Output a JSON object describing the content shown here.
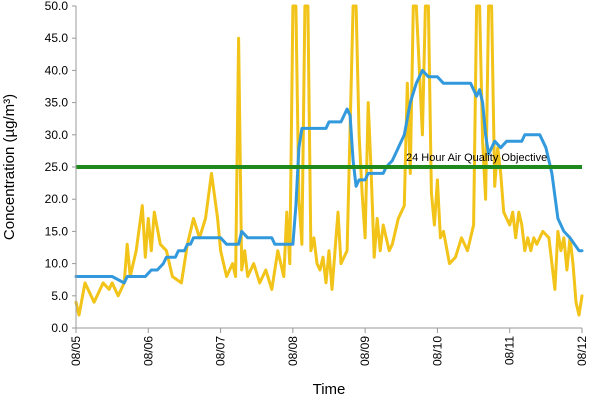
{
  "chart_data": {
    "type": "line",
    "title": "",
    "xlabel": "Time",
    "ylabel": "Concentration (µg/m³)",
    "x_start": "08/05",
    "x_end": "08/12",
    "x_ticks": [
      "08/05",
      "08/06",
      "08/07",
      "08/08",
      "08/09",
      "08/10",
      "08/11",
      "08/12"
    ],
    "ylim": [
      0,
      50
    ],
    "y_ticks": [
      "0.0",
      "5.0",
      "10.0",
      "15.0",
      "20.0",
      "25.0",
      "30.0",
      "35.0",
      "40.0",
      "45.0",
      "50.0"
    ],
    "grid": false,
    "legend": "none",
    "colors": {
      "hourly": "#f2c318",
      "rolling": "#3399dd",
      "objective": "#1e8a1e"
    },
    "objective": {
      "label": "24 Hour Air Quality Objective",
      "value": 25
    },
    "series": [
      {
        "points": [
          [
            "08/05 00:00",
            4
          ],
          [
            "08/05 01:00",
            2
          ],
          [
            "08/05 03:00",
            7
          ],
          [
            "08/05 06:00",
            4
          ],
          [
            "08/05 09:00",
            7
          ],
          [
            "08/05 11:00",
            6
          ],
          [
            "08/05 12:00",
            7
          ],
          [
            "08/05 14:00",
            5
          ],
          [
            "08/05 16:00",
            7
          ],
          [
            "08/05 17:00",
            13
          ],
          [
            "08/05 18:00",
            8
          ],
          [
            "08/05 20:00",
            12
          ],
          [
            "08/05 22:00",
            19
          ],
          [
            "08/05 23:00",
            11
          ],
          [
            "08/06 00:00",
            17
          ],
          [
            "08/06 01:00",
            12
          ],
          [
            "08/06 02:00",
            18
          ],
          [
            "08/06 04:00",
            13
          ],
          [
            "08/06 06:00",
            12
          ],
          [
            "08/06 08:00",
            8
          ],
          [
            "08/06 11:00",
            7
          ],
          [
            "08/06 13:00",
            13
          ],
          [
            "08/06 15:00",
            17
          ],
          [
            "08/06 17:00",
            14
          ],
          [
            "08/06 19:00",
            17
          ],
          [
            "08/06 21:00",
            24
          ],
          [
            "08/06 23:00",
            17
          ],
          [
            "08/07 00:00",
            12
          ],
          [
            "08/07 02:00",
            8
          ],
          [
            "08/07 04:00",
            10
          ],
          [
            "08/07 05:00",
            8
          ],
          [
            "08/07 06:00",
            45
          ],
          [
            "08/07 07:00",
            9
          ],
          [
            "08/07 08:00",
            12
          ],
          [
            "08/07 09:00",
            8
          ],
          [
            "08/07 11:00",
            10
          ],
          [
            "08/07 13:00",
            7
          ],
          [
            "08/07 15:00",
            9
          ],
          [
            "08/07 17:00",
            6
          ],
          [
            "08/07 19:00",
            12
          ],
          [
            "08/07 21:00",
            8
          ],
          [
            "08/07 22:00",
            18
          ],
          [
            "08/07 23:00",
            10
          ],
          [
            "08/08 00:00",
            50
          ],
          [
            "08/08 01:00",
            50
          ],
          [
            "08/08 02:00",
            20
          ],
          [
            "08/08 03:00",
            13
          ],
          [
            "08/08 04:00",
            50
          ],
          [
            "08/08 05:00",
            50
          ],
          [
            "08/08 06:00",
            12
          ],
          [
            "08/08 07:00",
            14
          ],
          [
            "08/08 08:00",
            10
          ],
          [
            "08/08 09:00",
            9
          ],
          [
            "08/08 10:00",
            11
          ],
          [
            "08/08 11:00",
            7
          ],
          [
            "08/08 12:00",
            12
          ],
          [
            "08/08 13:00",
            6
          ],
          [
            "08/08 15:00",
            18
          ],
          [
            "08/08 16:00",
            10
          ],
          [
            "08/08 18:00",
            12
          ],
          [
            "08/08 20:00",
            50
          ],
          [
            "08/08 21:00",
            50
          ],
          [
            "08/08 22:00",
            30
          ],
          [
            "08/08 23:00",
            21
          ],
          [
            "08/09 00:00",
            14
          ],
          [
            "08/09 01:00",
            35
          ],
          [
            "08/09 02:00",
            24
          ],
          [
            "08/09 03:00",
            11
          ],
          [
            "08/09 04:00",
            17
          ],
          [
            "08/09 05:00",
            12
          ],
          [
            "08/09 06:00",
            16
          ],
          [
            "08/09 07:00",
            14
          ],
          [
            "08/09 08:00",
            12
          ],
          [
            "08/09 09:00",
            13
          ],
          [
            "08/09 11:00",
            17
          ],
          [
            "08/09 13:00",
            19
          ],
          [
            "08/09 14:00",
            38
          ],
          [
            "08/09 15:00",
            24
          ],
          [
            "08/09 16:00",
            50
          ],
          [
            "08/09 17:00",
            50
          ],
          [
            "08/09 18:00",
            40
          ],
          [
            "08/09 19:00",
            30
          ],
          [
            "08/09 20:00",
            50
          ],
          [
            "08/09 21:00",
            50
          ],
          [
            "08/09 22:00",
            21
          ],
          [
            "08/09 23:00",
            16
          ],
          [
            "08/10 00:00",
            23
          ],
          [
            "08/10 01:00",
            14
          ],
          [
            "08/10 02:00",
            15
          ],
          [
            "08/10 04:00",
            10
          ],
          [
            "08/10 06:00",
            11
          ],
          [
            "08/10 08:00",
            14
          ],
          [
            "08/10 10:00",
            12
          ],
          [
            "08/10 12:00",
            16
          ],
          [
            "08/10 13:00",
            50
          ],
          [
            "08/10 14:00",
            50
          ],
          [
            "08/10 15:00",
            29
          ],
          [
            "08/10 16:00",
            20
          ],
          [
            "08/10 17:00",
            50
          ],
          [
            "08/10 18:00",
            50
          ],
          [
            "08/10 19:00",
            22
          ],
          [
            "08/10 20:00",
            28
          ],
          [
            "08/10 21:00",
            24
          ],
          [
            "08/10 22:00",
            18
          ],
          [
            "08/11 00:00",
            16
          ],
          [
            "08/11 01:00",
            18
          ],
          [
            "08/11 02:00",
            14
          ],
          [
            "08/11 03:00",
            18
          ],
          [
            "08/11 04:00",
            16
          ],
          [
            "08/11 05:00",
            12
          ],
          [
            "08/11 06:00",
            14
          ],
          [
            "08/11 07:00",
            12
          ],
          [
            "08/11 08:00",
            14
          ],
          [
            "08/11 09:00",
            13
          ],
          [
            "08/11 11:00",
            15
          ],
          [
            "08/11 13:00",
            14
          ],
          [
            "08/11 15:00",
            6
          ],
          [
            "08/11 16:00",
            15
          ],
          [
            "08/11 17:00",
            12
          ],
          [
            "08/11 18:00",
            14
          ],
          [
            "08/11 19:00",
            9
          ],
          [
            "08/11 20:00",
            14
          ],
          [
            "08/11 21:00",
            10
          ],
          [
            "08/11 22:00",
            4
          ],
          [
            "08/11 23:00",
            2
          ],
          [
            "08/12 00:00",
            5
          ]
        ]
      },
      {
        "points": [
          [
            "08/05 00:00",
            8
          ],
          [
            "08/05 12:00",
            8
          ],
          [
            "08/05 16:00",
            7
          ],
          [
            "08/05 17:00",
            8
          ],
          [
            "08/05 23:00",
            8
          ],
          [
            "08/06 01:00",
            9
          ],
          [
            "08/06 03:00",
            9
          ],
          [
            "08/06 05:00",
            10
          ],
          [
            "08/06 06:00",
            11
          ],
          [
            "08/06 09:00",
            11
          ],
          [
            "08/06 10:00",
            12
          ],
          [
            "08/06 12:00",
            12
          ],
          [
            "08/06 13:00",
            13
          ],
          [
            "08/06 14:00",
            13
          ],
          [
            "08/06 15:00",
            14
          ],
          [
            "08/06 23:00",
            14
          ],
          [
            "08/07 00:00",
            14
          ],
          [
            "08/07 02:00",
            13
          ],
          [
            "08/07 06:00",
            13
          ],
          [
            "08/07 07:00",
            15
          ],
          [
            "08/07 09:00",
            14
          ],
          [
            "08/07 17:00",
            14
          ],
          [
            "08/07 18:00",
            13
          ],
          [
            "08/08 00:00",
            13
          ],
          [
            "08/08 01:00",
            19
          ],
          [
            "08/08 02:00",
            28
          ],
          [
            "08/08 03:00",
            31
          ],
          [
            "08/08 11:00",
            31
          ],
          [
            "08/08 12:00",
            32
          ],
          [
            "08/08 16:00",
            32
          ],
          [
            "08/08 18:00",
            34
          ],
          [
            "08/08 19:00",
            33
          ],
          [
            "08/08 20:00",
            26
          ],
          [
            "08/08 21:00",
            22
          ],
          [
            "08/08 22:00",
            23
          ],
          [
            "08/08 23:00",
            23
          ],
          [
            "08/09 00:00",
            23
          ],
          [
            "08/09 01:00",
            24
          ],
          [
            "08/09 06:00",
            24
          ],
          [
            "08/09 07:00",
            25
          ],
          [
            "08/09 09:00",
            26
          ],
          [
            "08/09 11:00",
            28
          ],
          [
            "08/09 13:00",
            30
          ],
          [
            "08/09 15:00",
            35
          ],
          [
            "08/09 17:00",
            38
          ],
          [
            "08/09 19:00",
            40
          ],
          [
            "08/09 21:00",
            39
          ],
          [
            "08/10 00:00",
            39
          ],
          [
            "08/10 02:00",
            38
          ],
          [
            "08/10 11:00",
            38
          ],
          [
            "08/10 13:00",
            36
          ],
          [
            "08/10 14:00",
            37
          ],
          [
            "08/10 15:00",
            35
          ],
          [
            "08/10 16:00",
            30
          ],
          [
            "08/10 17:00",
            27
          ],
          [
            "08/10 19:00",
            29
          ],
          [
            "08/10 21:00",
            28
          ],
          [
            "08/10 23:00",
            29
          ],
          [
            "08/11 04:00",
            29
          ],
          [
            "08/11 05:00",
            30
          ],
          [
            "08/11 10:00",
            30
          ],
          [
            "08/11 12:00",
            28
          ],
          [
            "08/11 14:00",
            24
          ],
          [
            "08/11 16:00",
            17
          ],
          [
            "08/11 18:00",
            15
          ],
          [
            "08/11 20:00",
            14
          ],
          [
            "08/11 23:00",
            12
          ],
          [
            "08/12 00:00",
            12
          ]
        ]
      }
    ]
  }
}
